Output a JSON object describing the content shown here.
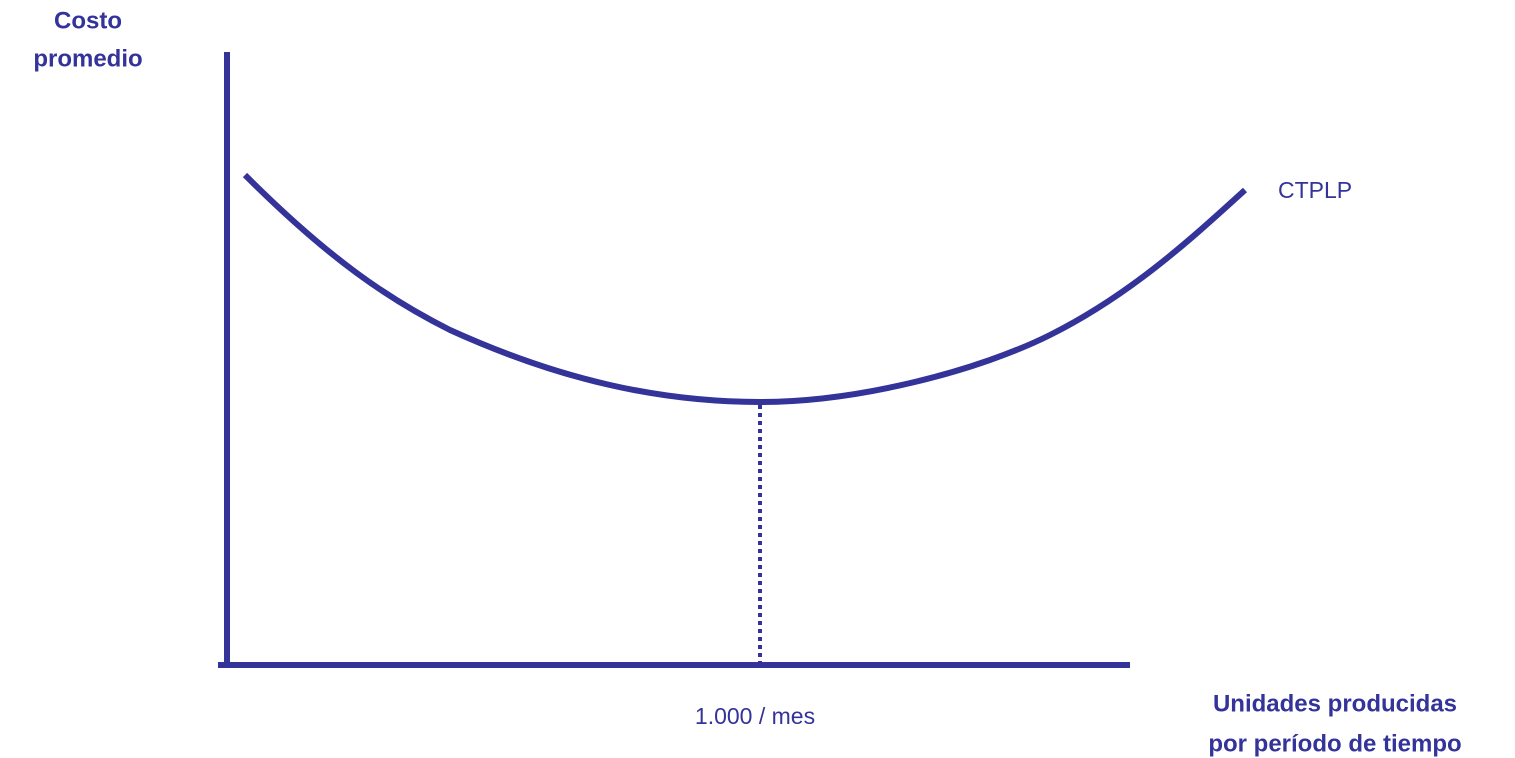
{
  "y_axis_label": {
    "lines": [
      "Costo",
      "promedio"
    ]
  },
  "x_axis_label": {
    "lines": [
      "Unidades producidas",
      "por período de tiempo"
    ]
  },
  "curve_label": "CTPLP",
  "x_marker_label": "1.000 / mes"
}
